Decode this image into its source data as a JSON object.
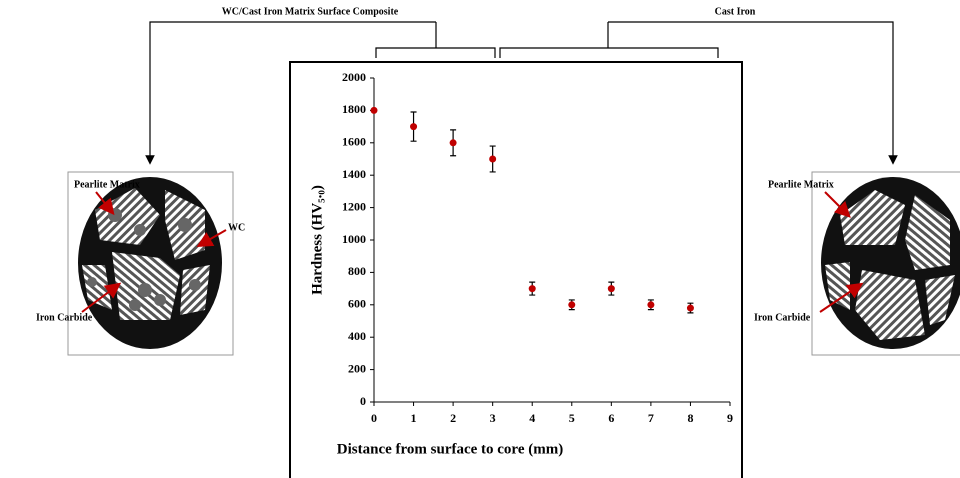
{
  "chart_data": {
    "type": "scatter",
    "xlabel": "Distance from surface to core (mm)",
    "ylabel": "Hardness (HV₅.₀)",
    "x": [
      0,
      1,
      2,
      3,
      4,
      5,
      6,
      7,
      8
    ],
    "values": [
      1800,
      1700,
      1600,
      1500,
      700,
      600,
      700,
      600,
      580
    ],
    "errors": [
      0,
      90,
      80,
      80,
      40,
      30,
      40,
      30,
      30
    ],
    "color": "#c00000",
    "xlim": [
      0,
      9
    ],
    "xticks": [
      0,
      1,
      2,
      3,
      4,
      5,
      6,
      7,
      8,
      9
    ],
    "ylim": [
      0,
      2000
    ],
    "yticks": [
      0,
      200,
      400,
      600,
      800,
      1000,
      1200,
      1400,
      1600,
      1800,
      2000
    ]
  },
  "regions": {
    "left": "WC/Cast Iron Matrix Surface Composite",
    "right": "Cast Iron"
  },
  "diagrams": {
    "left": {
      "pearlite": "Pearlite Matrix",
      "wc": "WC",
      "carbide": "Iron Carbide"
    },
    "right": {
      "pearlite": "Pearlite Matrix",
      "carbide": "Iron Carbide"
    }
  }
}
